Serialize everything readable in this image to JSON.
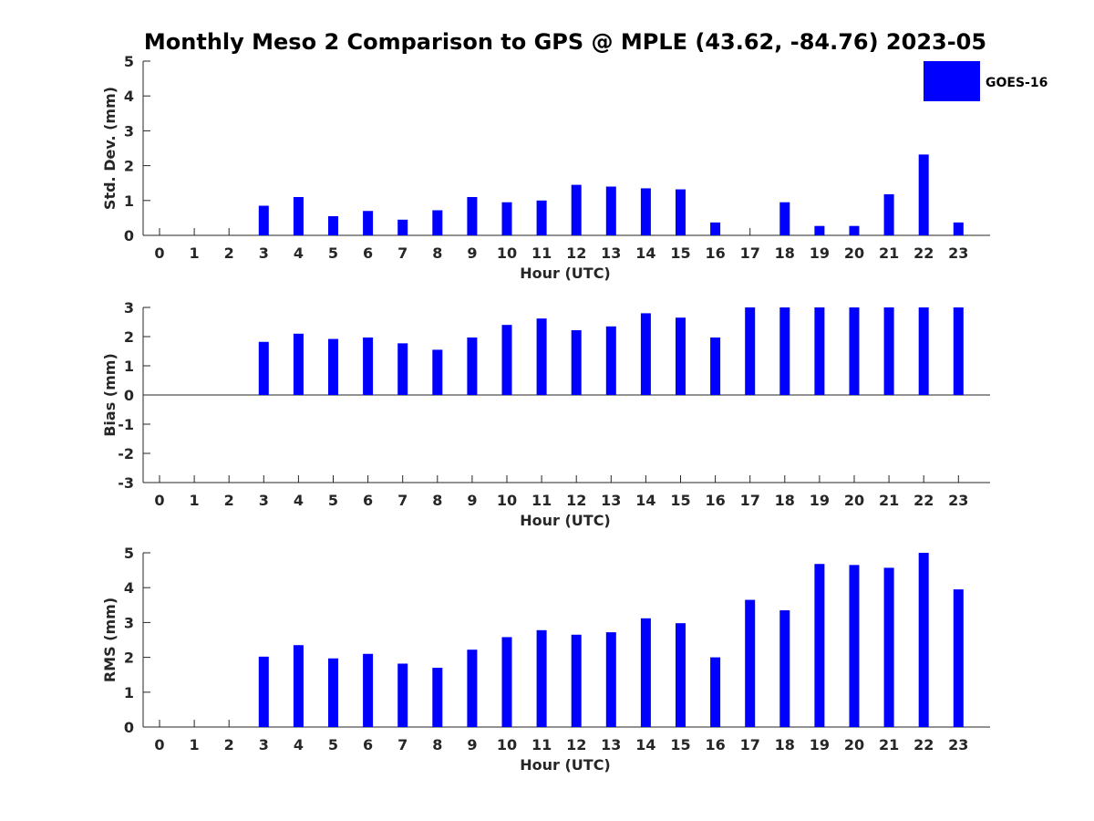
{
  "title": "Monthly Meso 2 Comparison to GPS @ MPLE (43.62, -84.76) 2023-05",
  "legend": {
    "label": "GOES-16",
    "color": "#0000ff"
  },
  "chart_data": [
    {
      "type": "bar",
      "name": "std-dev",
      "title": "Monthly Meso 2 Comparison to GPS @ MPLE (43.62, -84.76) 2023-05",
      "xlabel": "Hour (UTC)",
      "ylabel": "Std. Dev. (mm)",
      "ylim": [
        0,
        5
      ],
      "yticks": [
        0,
        1,
        2,
        3,
        4,
        5
      ],
      "categories": [
        "0",
        "1",
        "2",
        "3",
        "4",
        "5",
        "6",
        "7",
        "8",
        "9",
        "10",
        "11",
        "12",
        "13",
        "14",
        "15",
        "16",
        "17",
        "18",
        "19",
        "20",
        "21",
        "22",
        "23"
      ],
      "series": [
        {
          "name": "GOES-16",
          "color": "#0000ff",
          "values": [
            null,
            null,
            null,
            0.85,
            1.1,
            0.55,
            0.7,
            0.45,
            0.72,
            1.1,
            0.95,
            1.0,
            1.45,
            1.4,
            1.35,
            1.32,
            0.37,
            null,
            0.95,
            0.27,
            0.27,
            1.18,
            2.32,
            0.37
          ]
        }
      ]
    },
    {
      "type": "bar",
      "name": "bias",
      "xlabel": "Hour (UTC)",
      "ylabel": "Bias (mm)",
      "ylim": [
        -3,
        3
      ],
      "yticks": [
        -3,
        -2,
        -1,
        0,
        1,
        2,
        3
      ],
      "categories": [
        "0",
        "1",
        "2",
        "3",
        "4",
        "5",
        "6",
        "7",
        "8",
        "9",
        "10",
        "11",
        "12",
        "13",
        "14",
        "15",
        "16",
        "17",
        "18",
        "19",
        "20",
        "21",
        "22",
        "23"
      ],
      "series": [
        {
          "name": "GOES-16",
          "color": "#0000ff",
          "values": [
            null,
            null,
            null,
            1.82,
            2.1,
            1.92,
            1.97,
            1.77,
            1.55,
            1.97,
            2.4,
            2.62,
            2.22,
            2.35,
            2.8,
            2.65,
            1.97,
            3.0,
            3.0,
            3.0,
            3.0,
            3.0,
            3.0,
            3.0
          ]
        }
      ]
    },
    {
      "type": "bar",
      "name": "rms",
      "xlabel": "Hour (UTC)",
      "ylabel": "RMS (mm)",
      "ylim": [
        0,
        5
      ],
      "yticks": [
        0,
        1,
        2,
        3,
        4,
        5
      ],
      "categories": [
        "0",
        "1",
        "2",
        "3",
        "4",
        "5",
        "6",
        "7",
        "8",
        "9",
        "10",
        "11",
        "12",
        "13",
        "14",
        "15",
        "16",
        "17",
        "18",
        "19",
        "20",
        "21",
        "22",
        "23"
      ],
      "series": [
        {
          "name": "GOES-16",
          "color": "#0000ff",
          "values": [
            null,
            null,
            null,
            2.02,
            2.35,
            1.97,
            2.1,
            1.82,
            1.7,
            2.22,
            2.58,
            2.78,
            2.65,
            2.72,
            3.12,
            2.98,
            2.0,
            3.65,
            3.35,
            4.68,
            4.65,
            4.57,
            5.0,
            3.95
          ]
        }
      ]
    }
  ]
}
